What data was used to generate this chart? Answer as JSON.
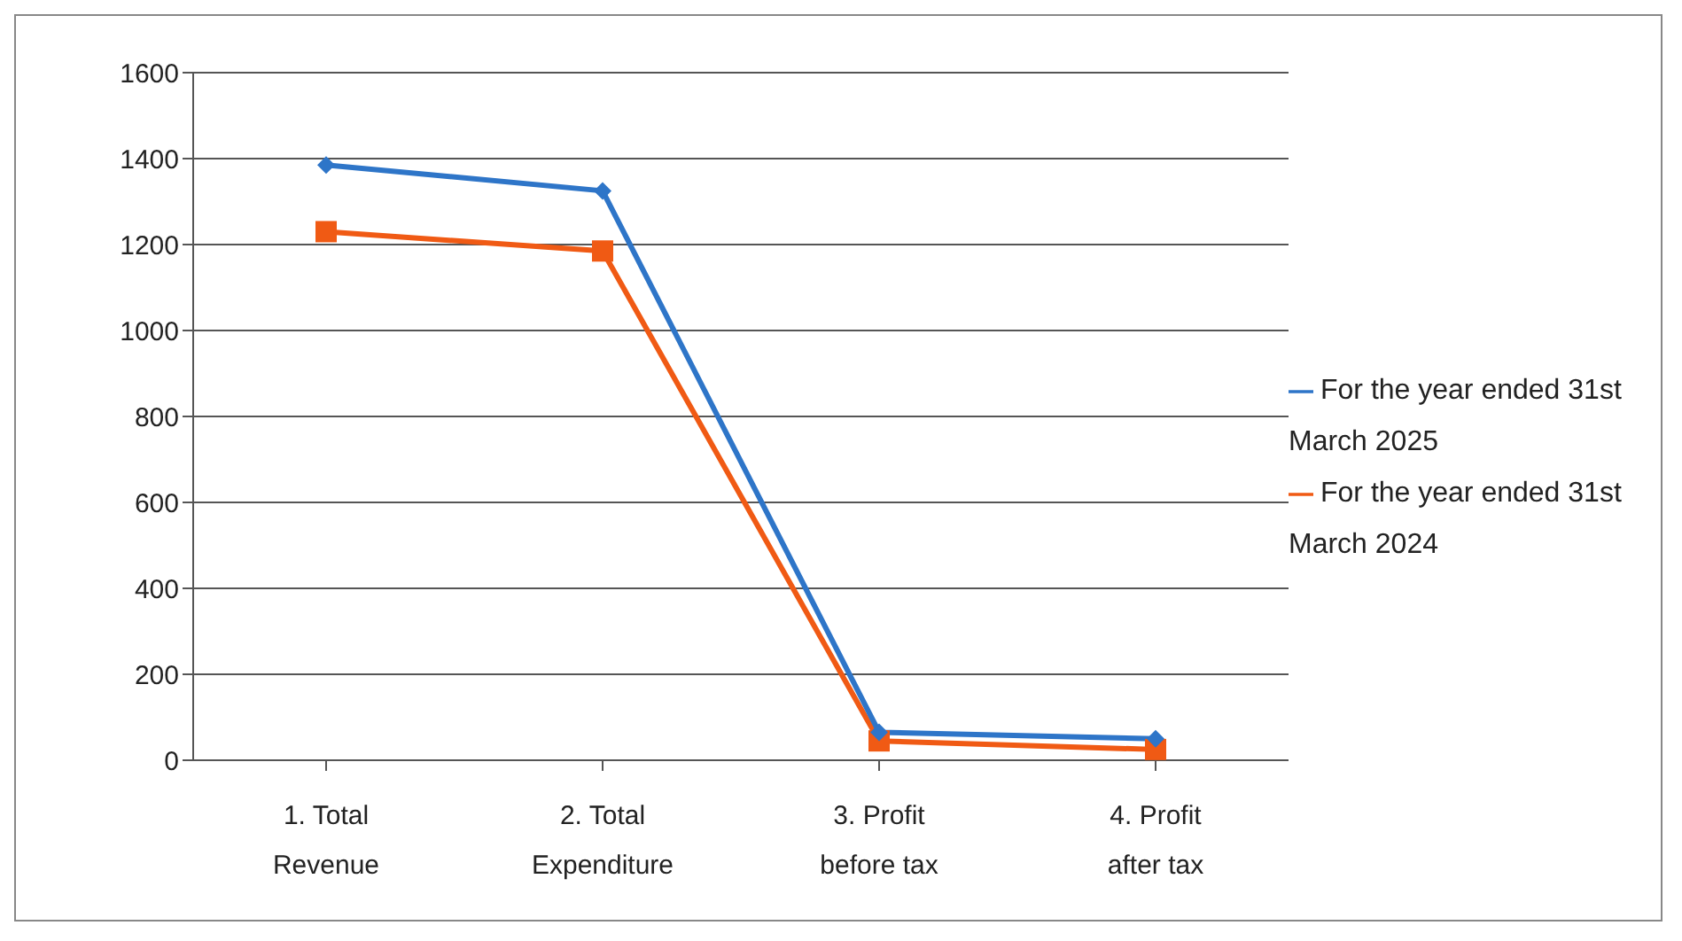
{
  "chart_data": {
    "type": "line",
    "categories": [
      "1. Total Revenue",
      "2. Total Expenditure",
      "3. Profit before tax",
      "4. Profit after tax"
    ],
    "series": [
      {
        "name": "For the year ended 31st March 2025",
        "color": "#2e75c8",
        "marker": "diamond",
        "values": [
          1385,
          1325,
          65,
          50
        ]
      },
      {
        "name": "For the year ended 31st March 2024",
        "color": "#f05a14",
        "marker": "square",
        "values": [
          1230,
          1185,
          45,
          25
        ]
      }
    ],
    "ylim": [
      0,
      1600
    ],
    "yticks": [
      0,
      200,
      400,
      600,
      800,
      1000,
      1200,
      1400,
      1600
    ],
    "grid": "y",
    "legend": "right"
  }
}
